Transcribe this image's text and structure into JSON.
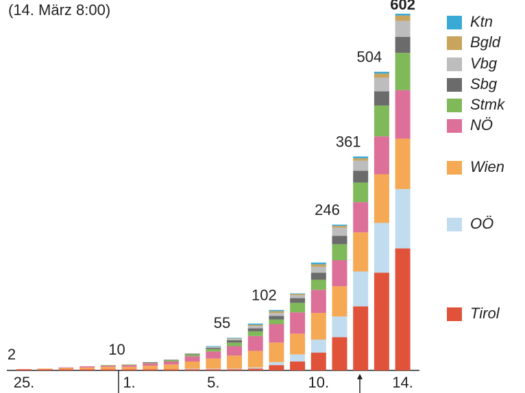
{
  "chart_data": {
    "type": "stacked_bar",
    "title": "(14. März 8:00)",
    "categories": [
      "25.",
      null,
      null,
      null,
      null,
      "1.",
      null,
      null,
      null,
      "5.",
      null,
      null,
      null,
      null,
      "10.",
      null,
      null,
      null,
      "14."
    ],
    "series": [
      {
        "name": "Tirol",
        "color": "#e0533a",
        "values": [
          2,
          2,
          2,
          2,
          2,
          2,
          2,
          2,
          2,
          2,
          2,
          3,
          9,
          15,
          30,
          56,
          108,
          165,
          206
        ]
      },
      {
        "name": "OÖ",
        "color": "#c1dcef",
        "values": [
          0,
          0,
          0,
          0,
          0,
          0,
          0,
          0,
          1,
          1,
          1,
          2,
          5,
          12,
          22,
          35,
          59,
          84,
          100
        ]
      },
      {
        "name": "Wien",
        "color": "#f5a955",
        "values": [
          0,
          1,
          2,
          3,
          4,
          4,
          6,
          8,
          12,
          17,
          22,
          28,
          33,
          35,
          45,
          51,
          66,
          82,
          85
        ]
      },
      {
        "name": "NÖ",
        "color": "#dd7099",
        "values": [
          0,
          0,
          1,
          2,
          2,
          3,
          4,
          5,
          9,
          12,
          16,
          25,
          31,
          36,
          39,
          44,
          51,
          64,
          82
        ]
      },
      {
        "name": "Stmk",
        "color": "#7fb95a",
        "values": [
          0,
          0,
          0,
          0,
          1,
          1,
          1,
          2,
          3,
          4,
          6,
          8,
          8,
          16,
          17,
          27,
          33,
          52,
          63
        ]
      },
      {
        "name": "Sbg",
        "color": "#6b6b6b",
        "values": [
          0,
          0,
          0,
          0,
          0,
          0,
          1,
          1,
          1,
          2,
          4,
          5,
          6,
          8,
          12,
          14,
          20,
          24,
          27
        ]
      },
      {
        "name": "Vbg",
        "color": "#bdbdbd",
        "values": [
          0,
          0,
          0,
          0,
          0,
          0,
          0,
          0,
          1,
          2,
          2,
          4,
          5,
          5,
          10,
          14,
          17,
          23,
          27
        ]
      },
      {
        "name": "Bgld",
        "color": "#c9a45c",
        "values": [
          0,
          0,
          0,
          0,
          0,
          0,
          0,
          0,
          0,
          0,
          1,
          2,
          3,
          2,
          4,
          3,
          4,
          7,
          9
        ]
      },
      {
        "name": "Ktn",
        "color": "#3aa9d6",
        "values": [
          0,
          0,
          0,
          0,
          0,
          0,
          0,
          0,
          0,
          1,
          1,
          2,
          2,
          1,
          3,
          2,
          3,
          3,
          3
        ]
      }
    ],
    "totals": [
      2,
      null,
      null,
      null,
      null,
      10,
      null,
      null,
      null,
      null,
      55,
      null,
      102,
      null,
      null,
      246,
      361,
      504,
      602
    ],
    "ylim": [
      0,
      602
    ]
  }
}
